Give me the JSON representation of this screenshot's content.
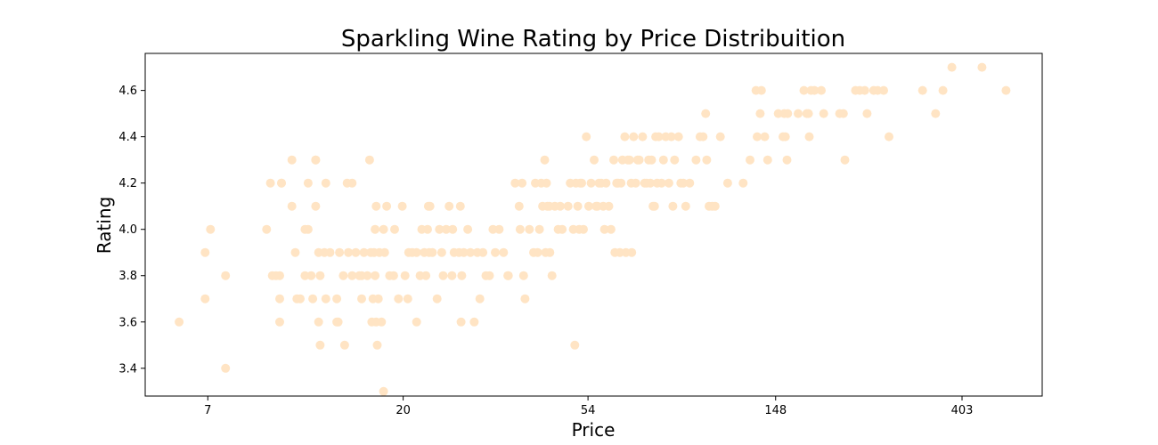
{
  "chart_data": {
    "type": "scatter",
    "title": "Sparkling Wine Rating by Price Distribuition",
    "xlabel": "Price",
    "ylabel": "Rating",
    "x_scale": "log",
    "xlim": [
      5.0,
      620
    ],
    "ylim": [
      3.28,
      4.76
    ],
    "x_ticks": [
      7,
      20,
      54,
      148,
      403
    ],
    "x_tick_labels": [
      "7",
      "20",
      "54",
      "148",
      "403"
    ],
    "y_ticks": [
      3.4,
      3.6,
      3.8,
      4.0,
      4.2,
      4.4,
      4.6
    ],
    "y_tick_labels": [
      "3.4",
      "3.6",
      "3.8",
      "4.0",
      "4.2",
      "4.4",
      "4.6"
    ],
    "grid": false,
    "marker_color": "#ffe4c4",
    "points": [
      [
        6.0,
        3.6
      ],
      [
        6.9,
        3.7
      ],
      [
        6.9,
        3.9
      ],
      [
        7.1,
        4.0
      ],
      [
        7.7,
        3.8
      ],
      [
        7.7,
        3.4
      ],
      [
        9.6,
        4.0
      ],
      [
        9.8,
        4.2
      ],
      [
        9.9,
        3.8
      ],
      [
        10.1,
        3.8
      ],
      [
        10.3,
        3.7
      ],
      [
        10.3,
        3.8
      ],
      [
        10.4,
        4.2
      ],
      [
        10.3,
        3.6
      ],
      [
        10.4,
        4.2
      ],
      [
        11.0,
        4.3
      ],
      [
        11.0,
        4.1
      ],
      [
        11.2,
        3.9
      ],
      [
        11.3,
        3.7
      ],
      [
        11.5,
        3.7
      ],
      [
        11.8,
        4.0
      ],
      [
        11.8,
        3.8
      ],
      [
        12.0,
        4.2
      ],
      [
        12.0,
        4.0
      ],
      [
        12.2,
        3.8
      ],
      [
        12.3,
        3.7
      ],
      [
        12.5,
        4.3
      ],
      [
        12.5,
        4.1
      ],
      [
        12.7,
        3.9
      ],
      [
        12.7,
        3.6
      ],
      [
        12.8,
        3.5
      ],
      [
        12.8,
        3.8
      ],
      [
        12.5,
        4.3
      ],
      [
        13.1,
        3.9
      ],
      [
        13.2,
        4.2
      ],
      [
        13.2,
        3.7
      ],
      [
        13.5,
        3.9
      ],
      [
        14.0,
        3.6
      ],
      [
        14.0,
        3.7
      ],
      [
        14.1,
        3.6
      ],
      [
        14.2,
        3.9
      ],
      [
        14.5,
        3.8
      ],
      [
        14.6,
        3.5
      ],
      [
        14.8,
        4.2
      ],
      [
        14.9,
        3.9
      ],
      [
        15.2,
        4.2
      ],
      [
        15.2,
        3.8
      ],
      [
        15.5,
        3.9
      ],
      [
        15.8,
        3.8
      ],
      [
        16.0,
        3.8
      ],
      [
        16.0,
        3.7
      ],
      [
        16.2,
        3.9
      ],
      [
        16.5,
        3.8
      ],
      [
        16.7,
        4.3
      ],
      [
        16.8,
        3.9
      ],
      [
        16.9,
        3.6
      ],
      [
        17.0,
        3.7
      ],
      [
        17.1,
        3.9
      ],
      [
        17.2,
        3.8
      ],
      [
        17.2,
        4.0
      ],
      [
        17.3,
        4.1
      ],
      [
        17.3,
        3.6
      ],
      [
        17.4,
        3.5
      ],
      [
        17.5,
        3.7
      ],
      [
        17.6,
        3.9
      ],
      [
        17.8,
        3.6
      ],
      [
        18.0,
        4.0
      ],
      [
        18.0,
        3.3
      ],
      [
        18.1,
        3.9
      ],
      [
        18.3,
        4.1
      ],
      [
        18.6,
        3.8
      ],
      [
        19.0,
        3.8
      ],
      [
        19.1,
        4.0
      ],
      [
        19.5,
        3.7
      ],
      [
        19.9,
        4.1
      ],
      [
        20.2,
        3.8
      ],
      [
        20.5,
        3.7
      ],
      [
        20.6,
        3.9
      ],
      [
        21.0,
        3.9
      ],
      [
        21.5,
        3.9
      ],
      [
        21.5,
        3.6
      ],
      [
        21.9,
        3.8
      ],
      [
        22.1,
        4.0
      ],
      [
        22.4,
        3.9
      ],
      [
        22.6,
        3.8
      ],
      [
        22.8,
        4.0
      ],
      [
        22.9,
        4.1
      ],
      [
        23.0,
        3.9
      ],
      [
        23.1,
        4.1
      ],
      [
        23.4,
        3.9
      ],
      [
        24.0,
        3.7
      ],
      [
        24.3,
        4.0
      ],
      [
        24.6,
        3.9
      ],
      [
        24.8,
        3.8
      ],
      [
        25.2,
        4.0
      ],
      [
        25.6,
        4.1
      ],
      [
        26.0,
        3.8
      ],
      [
        26.1,
        4.0
      ],
      [
        26.3,
        3.9
      ],
      [
        27.0,
        3.9
      ],
      [
        27.2,
        4.1
      ],
      [
        27.3,
        3.6
      ],
      [
        27.4,
        3.8
      ],
      [
        27.7,
        3.9
      ],
      [
        28.3,
        4.0
      ],
      [
        28.7,
        3.9
      ],
      [
        29.3,
        3.6
      ],
      [
        29.8,
        3.9
      ],
      [
        30.2,
        3.7
      ],
      [
        30.7,
        3.9
      ],
      [
        31.2,
        3.8
      ],
      [
        31.8,
        3.8
      ],
      [
        32.4,
        4.0
      ],
      [
        32.8,
        3.9
      ],
      [
        33.5,
        4.0
      ],
      [
        34.3,
        3.9
      ],
      [
        35.1,
        3.8
      ],
      [
        35.2,
        3.8
      ],
      [
        36.5,
        4.2
      ],
      [
        37.3,
        4.1
      ],
      [
        37.5,
        4.0
      ],
      [
        37.9,
        4.2
      ],
      [
        38.2,
        3.8
      ],
      [
        38.5,
        3.7
      ],
      [
        39.4,
        4.0
      ],
      [
        40.3,
        3.9
      ],
      [
        40.7,
        4.2
      ],
      [
        41.2,
        3.9
      ],
      [
        41.6,
        4.0
      ],
      [
        42.0,
        4.2
      ],
      [
        42.3,
        4.1
      ],
      [
        42.8,
        4.3
      ],
      [
        43.0,
        3.9
      ],
      [
        43.2,
        4.2
      ],
      [
        43.4,
        4.1
      ],
      [
        43.9,
        4.1
      ],
      [
        44.0,
        3.9
      ],
      [
        44.5,
        3.8
      ],
      [
        45.2,
        4.1
      ],
      [
        46.0,
        4.0
      ],
      [
        46.5,
        4.1
      ],
      [
        47.0,
        4.0
      ],
      [
        48.5,
        4.1
      ],
      [
        49.1,
        4.2
      ],
      [
        49.9,
        4.0
      ],
      [
        50.3,
        3.5
      ],
      [
        50.6,
        4.2
      ],
      [
        51.1,
        4.1
      ],
      [
        51.5,
        4.0
      ],
      [
        51.8,
        4.2
      ],
      [
        52.2,
        4.2
      ],
      [
        52.7,
        4.0
      ],
      [
        53.5,
        4.4
      ],
      [
        54.2,
        4.1
      ],
      [
        54.9,
        4.2
      ],
      [
        55.8,
        4.3
      ],
      [
        56.4,
        4.1
      ],
      [
        56.8,
        4.1
      ],
      [
        57.3,
        4.2
      ],
      [
        58.0,
        4.2
      ],
      [
        58.6,
        4.1
      ],
      [
        59.0,
        4.0
      ],
      [
        59.5,
        4.2
      ],
      [
        60.4,
        4.1
      ],
      [
        61.1,
        4.0
      ],
      [
        62.0,
        4.3
      ],
      [
        62.4,
        3.9
      ],
      [
        63.0,
        4.2
      ],
      [
        63.5,
        4.2
      ],
      [
        64.1,
        3.9
      ],
      [
        64.5,
        4.2
      ],
      [
        65.0,
        4.3
      ],
      [
        65.8,
        4.4
      ],
      [
        66.2,
        3.9
      ],
      [
        66.9,
        4.3
      ],
      [
        67.5,
        4.3
      ],
      [
        68.1,
        4.2
      ],
      [
        68.3,
        3.9
      ],
      [
        69.0,
        4.4
      ],
      [
        69.8,
        4.2
      ],
      [
        70.5,
        4.3
      ],
      [
        71.1,
        4.3
      ],
      [
        72.4,
        4.4
      ],
      [
        73.2,
        4.2
      ],
      [
        74.0,
        4.2
      ],
      [
        74.8,
        4.3
      ],
      [
        75.5,
        4.2
      ],
      [
        76.0,
        4.3
      ],
      [
        76.6,
        4.1
      ],
      [
        77.2,
        4.1
      ],
      [
        77.7,
        4.4
      ],
      [
        78.3,
        4.2
      ],
      [
        79.0,
        4.4
      ],
      [
        80.2,
        4.2
      ],
      [
        81.0,
        4.3
      ],
      [
        82.0,
        4.4
      ],
      [
        83.4,
        4.2
      ],
      [
        84.5,
        4.4
      ],
      [
        85.2,
        4.1
      ],
      [
        86.0,
        4.3
      ],
      [
        87.8,
        4.4
      ],
      [
        88.9,
        4.2
      ],
      [
        90.1,
        4.2
      ],
      [
        91.3,
        4.1
      ],
      [
        93.3,
        4.2
      ],
      [
        96.5,
        4.3
      ],
      [
        98.6,
        4.4
      ],
      [
        100.2,
        4.4
      ],
      [
        101.6,
        4.5
      ],
      [
        102.2,
        4.3
      ],
      [
        103.5,
        4.1
      ],
      [
        105.3,
        4.1
      ],
      [
        106.9,
        4.1
      ],
      [
        110.0,
        4.4
      ],
      [
        114.4,
        4.2
      ],
      [
        124.3,
        4.2
      ],
      [
        129.0,
        4.3
      ],
      [
        133.2,
        4.6
      ],
      [
        134.0,
        4.4
      ],
      [
        136.2,
        4.5
      ],
      [
        137.1,
        4.6
      ],
      [
        139.6,
        4.4
      ],
      [
        141.8,
        4.3
      ],
      [
        150.1,
        4.5
      ],
      [
        154.0,
        4.4
      ],
      [
        155.0,
        4.5
      ],
      [
        157.3,
        4.3
      ],
      [
        157.9,
        4.5
      ],
      [
        156.0,
        4.4
      ],
      [
        167.0,
        4.5
      ],
      [
        172.3,
        4.6
      ],
      [
        175.0,
        4.5
      ],
      [
        176.6,
        4.5
      ],
      [
        177.3,
        4.4
      ],
      [
        179.0,
        4.6
      ],
      [
        182.3,
        4.6
      ],
      [
        189.2,
        4.6
      ],
      [
        191.6,
        4.5
      ],
      [
        208.8,
        4.5
      ],
      [
        213.0,
        4.5
      ],
      [
        214.7,
        4.3
      ],
      [
        227.3,
        4.6
      ],
      [
        232.6,
        4.6
      ],
      [
        238.9,
        4.6
      ],
      [
        241.9,
        4.5
      ],
      [
        250.6,
        4.6
      ],
      [
        256.1,
        4.6
      ],
      [
        264.4,
        4.6
      ],
      [
        272.2,
        4.4
      ],
      [
        326.0,
        4.6
      ],
      [
        349.5,
        4.5
      ],
      [
        363.8,
        4.6
      ],
      [
        381.5,
        4.7
      ],
      [
        448.7,
        4.7
      ],
      [
        510.5,
        4.6
      ]
    ]
  }
}
